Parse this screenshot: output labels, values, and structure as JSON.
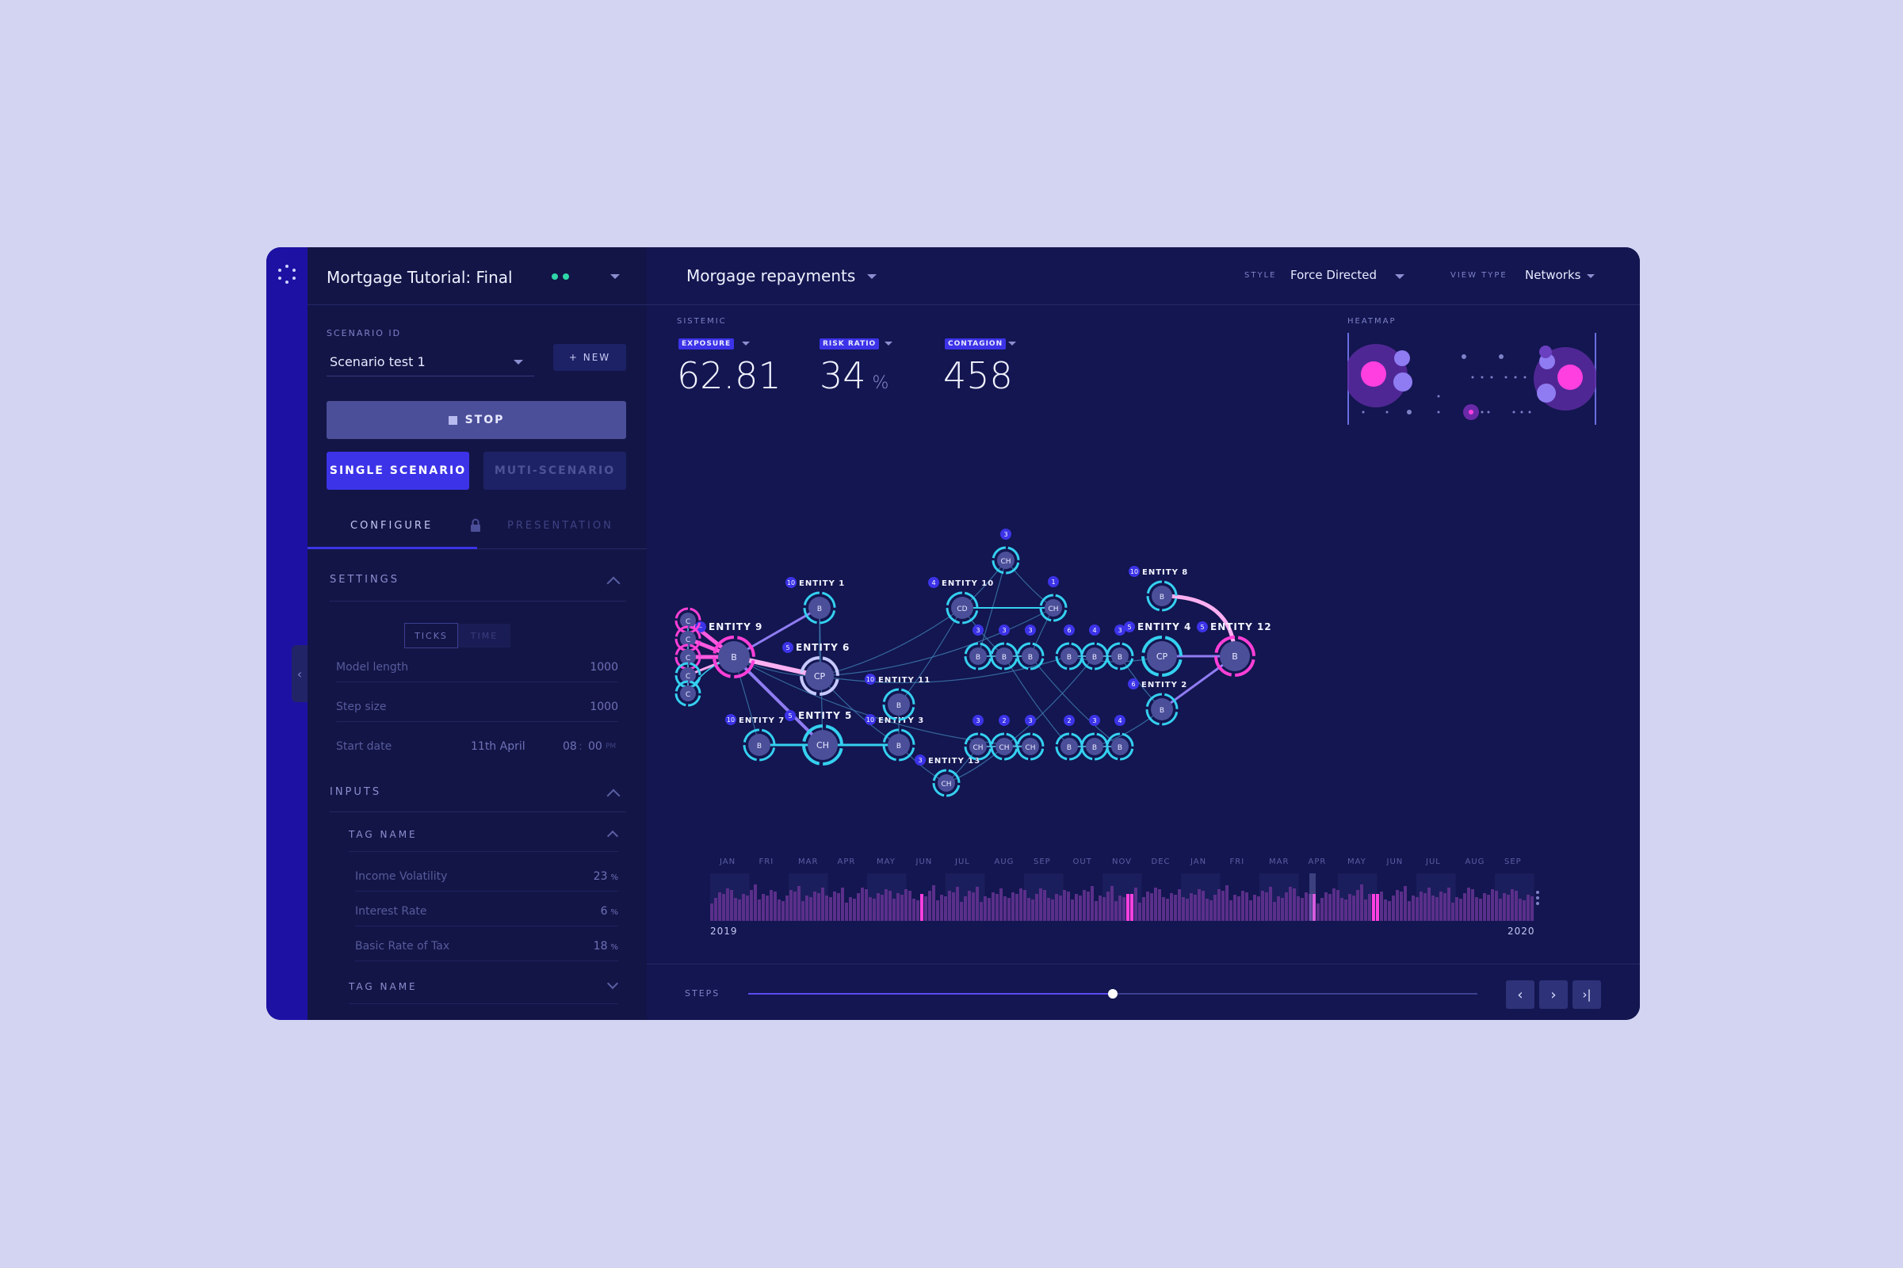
{
  "project": {
    "title": "Mortgage Tutorial: Final"
  },
  "sidebar": {
    "scenario_id_label": "SCENARIO ID",
    "scenario_value": "Scenario test 1",
    "new_button": "+ NEW",
    "stop_button": "STOP",
    "single_scenario": "SINGLE SCENARIO",
    "multi_scenario": "MUTI-SCENARIO",
    "tabs": {
      "configure": "CONFIGURE",
      "presentation": "PRESENTATION"
    },
    "settings": {
      "title": "SETTINGS",
      "toggle": {
        "ticks": "TICKS",
        "time": "TIME"
      },
      "model_length": {
        "label": "Model length",
        "value": "1000"
      },
      "step_size": {
        "label": "Step size",
        "value": "1000"
      },
      "start_date": {
        "label": "Start date",
        "date": "11th April",
        "hour": "08",
        "minute": "00",
        "ampm": "PM"
      }
    },
    "inputs": {
      "title": "INPUTS",
      "group1": "TAG NAME",
      "items": [
        {
          "label": "Income Volatility",
          "value": "23",
          "unit": "%"
        },
        {
          "label": "Interest Rate",
          "value": "6",
          "unit": "%"
        },
        {
          "label": "Basic Rate of Tax",
          "value": "18",
          "unit": "%"
        }
      ],
      "group2": "TAG NAME"
    }
  },
  "header": {
    "view_title": "Morgage repayments",
    "style_label": "STYLE",
    "style_value": "Force Directed",
    "view_type_label": "VIEW TYPE",
    "view_type_value": "Networks"
  },
  "kpis": {
    "section": "SISTEMIC",
    "exposure": {
      "badge": "EXPOSURE",
      "value": "62.81"
    },
    "risk_ratio": {
      "badge": "RISK RATIO",
      "value": "34",
      "unit": "%"
    },
    "contagion": {
      "badge": "CONTAGION",
      "value": "458"
    }
  },
  "heatmap": {
    "label": "HEATMAP"
  },
  "graph": {
    "entities": [
      {
        "id": "e1",
        "label": "ENTITY 1",
        "count": "10",
        "type": "B"
      },
      {
        "id": "e2",
        "label": "ENTITY 2",
        "count": "6",
        "type": "B"
      },
      {
        "id": "e3",
        "label": "ENTITY 3",
        "count": "10",
        "type": "B"
      },
      {
        "id": "e4",
        "label": "ENTITY 4",
        "count": "5",
        "type": "CP"
      },
      {
        "id": "e5",
        "label": "ENTITY 5",
        "count": "5",
        "type": "CH"
      },
      {
        "id": "e6",
        "label": "ENTITY 6",
        "count": "5",
        "type": "CP"
      },
      {
        "id": "e7",
        "label": "ENTITY 7",
        "count": "10",
        "type": "B"
      },
      {
        "id": "e8",
        "label": "ENTITY 8",
        "count": "10",
        "type": "B"
      },
      {
        "id": "e9",
        "label": "ENTITY 9",
        "count": "–",
        "type": "B"
      },
      {
        "id": "e10",
        "label": "ENTITY 10",
        "count": "4",
        "type": "CD"
      },
      {
        "id": "e11",
        "label": "ENTITY 11",
        "count": "10",
        "type": "B"
      },
      {
        "id": "e12",
        "label": "ENTITY 12",
        "count": "5",
        "type": "B"
      },
      {
        "id": "e13",
        "label": "ENTITY 13",
        "count": "3",
        "type": "CH"
      }
    ]
  },
  "timeline": {
    "months": [
      "JAN",
      "FRI",
      "MAR",
      "APR",
      "MAY",
      "JUN",
      "JUL",
      "AUG",
      "SEP",
      "OUT",
      "NOV",
      "DEC",
      "JAN",
      "FRI",
      "MAR",
      "APR",
      "MAY",
      "JUN",
      "JUL",
      "AUG",
      "SEP"
    ],
    "start_year": "2019",
    "end_year": "2020"
  },
  "steps": {
    "label": "STEPS",
    "progress": 0.5
  },
  "colors": {
    "accent": "#3c33e8",
    "cyan": "#35d0f0",
    "magenta": "#ff3fd8",
    "violet": "#8f7cf2",
    "bg": "#131650"
  }
}
